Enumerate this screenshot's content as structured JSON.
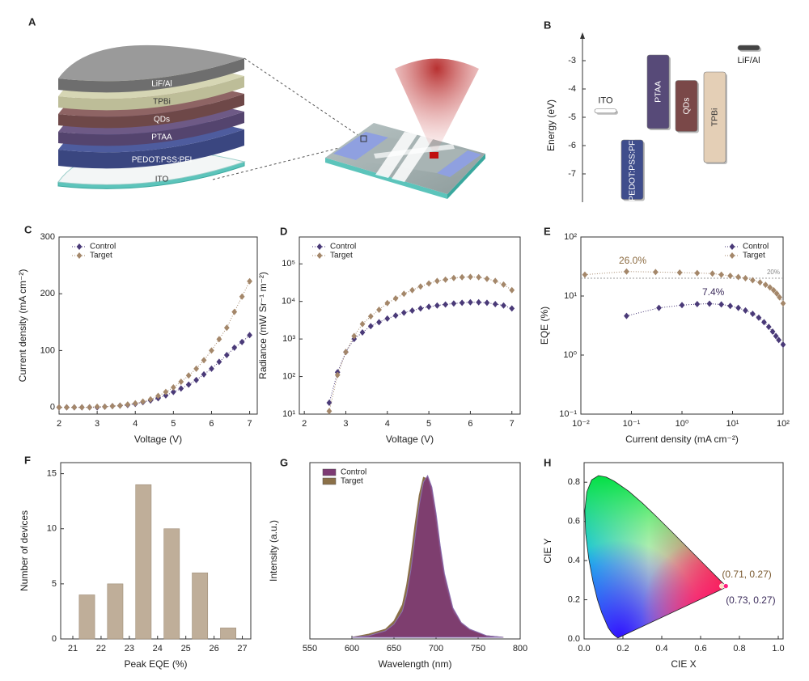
{
  "device_diagram": {
    "label": "A",
    "layers": [
      "LiF/Al",
      "TPBi",
      "QDs",
      "PTAA",
      "PEDOT:PSS:PFI",
      "ITO"
    ]
  },
  "chart_data": [
    {
      "type": "energy-levels",
      "label": "B",
      "ylabel": "Energy (eV)",
      "ylim": [
        -8,
        -2
      ],
      "yticks": [
        -3,
        -4,
        -5,
        -6,
        -7
      ],
      "levels": [
        {
          "name": "ITO",
          "top": -4.7,
          "bottom": -4.85,
          "color": "#ffffff"
        },
        {
          "name": "PEDOT:PSS:PFI",
          "top": -5.8,
          "bottom": -7.9,
          "color": "#3f4d8c"
        },
        {
          "name": "PTAA",
          "top": -2.8,
          "bottom": -5.4,
          "color": "#574a78"
        },
        {
          "name": "QDs",
          "top": -3.7,
          "bottom": -5.5,
          "color": "#7a4848"
        },
        {
          "name": "TPBi",
          "top": -3.4,
          "bottom": -6.6,
          "color": "#e4cfb6"
        },
        {
          "name": "LiF/Al",
          "top": -2.46,
          "bottom": -2.63,
          "color": "#444444"
        }
      ]
    },
    {
      "type": "line",
      "label": "C",
      "xlabel": "Voltage (V)",
      "ylabel": "Current density (mA cm⁻²)",
      "xlim": [
        2,
        7.2
      ],
      "ylim": [
        -12,
        300
      ],
      "xticks": [
        2,
        3,
        4,
        5,
        6,
        7
      ],
      "yticks": [
        0,
        100,
        200,
        300
      ],
      "legend": "upper left",
      "x": [
        2.0,
        2.2,
        2.4,
        2.6,
        2.8,
        3.0,
        3.2,
        3.4,
        3.6,
        3.8,
        4.0,
        4.2,
        4.4,
        4.6,
        4.8,
        5.0,
        5.2,
        5.4,
        5.6,
        5.8,
        6.0,
        6.2,
        6.4,
        6.6,
        6.8,
        7.0
      ],
      "series": [
        {
          "name": "Control",
          "color": "#4a3a78",
          "values": [
            0,
            0,
            0,
            0,
            0,
            0,
            1,
            2,
            3,
            4,
            6,
            9,
            12,
            16,
            21,
            27,
            33,
            40,
            48,
            58,
            68,
            80,
            92,
            105,
            115,
            127
          ]
        },
        {
          "name": "Target",
          "color": "#a4876a",
          "values": [
            0,
            0,
            0,
            0,
            0,
            1,
            1,
            2,
            3,
            5,
            7,
            10,
            14,
            20,
            27,
            35,
            45,
            56,
            68,
            83,
            100,
            120,
            140,
            168,
            195,
            222
          ]
        }
      ]
    },
    {
      "type": "line",
      "label": "D",
      "xlabel": "Voltage (V)",
      "ylabel": "Radiance (mW Sr⁻¹ m⁻²)",
      "ylog": true,
      "xlim": [
        1.88,
        7.2
      ],
      "ylim": [
        10,
        520000
      ],
      "xticks": [
        2,
        3,
        4,
        5,
        6,
        7
      ],
      "yticks": [
        {
          "value": 10,
          "label": "10¹"
        },
        {
          "value": 100,
          "label": "10²"
        },
        {
          "value": 1000,
          "label": "10³"
        },
        {
          "value": 10000,
          "label": "10⁴"
        },
        {
          "value": 100000,
          "label": "10⁵"
        }
      ],
      "legend": "upper left",
      "x": [
        2.6,
        2.8,
        3.0,
        3.2,
        3.4,
        3.6,
        3.8,
        4.0,
        4.2,
        4.4,
        4.6,
        4.8,
        5.0,
        5.2,
        5.4,
        5.6,
        5.8,
        6.0,
        6.2,
        6.4,
        6.6,
        6.8,
        7.0
      ],
      "series": [
        {
          "name": "Control",
          "color": "#4a3a78",
          "values": [
            20,
            130,
            450,
            1000,
            1500,
            2200,
            2800,
            3500,
            4200,
            5000,
            5700,
            6500,
            7200,
            7800,
            8300,
            8800,
            9200,
            9500,
            9500,
            9200,
            8500,
            7800,
            6500
          ]
        },
        {
          "name": "Target",
          "color": "#a4876a",
          "values": [
            12,
            110,
            450,
            1200,
            2500,
            4000,
            6000,
            9000,
            12000,
            16000,
            20000,
            25000,
            30000,
            35000,
            38000,
            42000,
            44000,
            45000,
            44000,
            40000,
            35000,
            28000,
            20000
          ]
        }
      ]
    },
    {
      "type": "line",
      "label": "E",
      "xlabel": "Current density (mA cm⁻²)",
      "ylabel": "EQE (%)",
      "xlog": true,
      "ylog": true,
      "xlim": [
        0.01,
        100
      ],
      "ylim": [
        0.1,
        100
      ],
      "xticks": [
        {
          "value": 0.01,
          "label": "10⁻²"
        },
        {
          "value": 0.1,
          "label": "10⁻¹"
        },
        {
          "value": 1,
          "label": "10⁰"
        },
        {
          "value": 10,
          "label": "10¹"
        },
        {
          "value": 100,
          "label": "10²"
        }
      ],
      "yticks": [
        {
          "value": 0.1,
          "label": "10⁻¹"
        },
        {
          "value": 1,
          "label": "10⁰"
        },
        {
          "value": 10,
          "label": "10¹"
        },
        {
          "value": 100,
          "label": "10²"
        }
      ],
      "legend": "upper right",
      "ref_line": {
        "value": 20,
        "label": "20%"
      },
      "annotations": [
        "26.0%",
        "7.4%"
      ],
      "series": [
        {
          "name": "Control",
          "color": "#4a3a78",
          "x": [
            0.08,
            0.35,
            1,
            2,
            3.5,
            6,
            9,
            13,
            18,
            25,
            33,
            42,
            52,
            62,
            72,
            82,
            100
          ],
          "values": [
            4.6,
            6.3,
            7,
            7.3,
            7.4,
            7.2,
            6.8,
            6.3,
            5.7,
            5,
            4.3,
            3.6,
            3,
            2.5,
            2.1,
            1.8,
            1.5
          ]
        },
        {
          "name": "Target",
          "color": "#a4876a",
          "x": [
            0.012,
            0.08,
            0.3,
            0.9,
            2,
            4,
            6,
            9,
            13,
            18,
            25,
            35,
            45,
            55,
            65,
            75,
            85,
            100
          ],
          "values": [
            23,
            26,
            25.5,
            25,
            24.5,
            24,
            23,
            22,
            21,
            20,
            18.5,
            17,
            15.5,
            14,
            12.5,
            11,
            9.5,
            7.5
          ]
        }
      ]
    },
    {
      "type": "histogram",
      "label": "F",
      "xlabel": "Peak EQE (%)",
      "ylabel": "Number of devices",
      "color": "#bfae99",
      "xlim": [
        20.57,
        27.3
      ],
      "ylim": [
        0,
        16
      ],
      "xticks": [
        21,
        22,
        23,
        24,
        25,
        26,
        27
      ],
      "yticks": [
        0,
        5,
        10,
        15
      ],
      "bins": [
        21,
        22,
        23,
        24,
        25,
        26,
        27
      ],
      "counts": [
        4,
        5,
        14,
        10,
        6,
        1
      ]
    },
    {
      "type": "area",
      "label": "G",
      "xlabel": "Wavelength (nm)",
      "ylabel": "Intensity (a.u.)",
      "legend": "upper left",
      "xlim": [
        550,
        800
      ],
      "ylim": [
        0,
        1.08
      ],
      "xticks": [
        550,
        600,
        650,
        700,
        750,
        800
      ],
      "x": [
        600,
        620,
        640,
        650,
        660,
        665,
        670,
        675,
        680,
        685,
        690,
        695,
        700,
        705,
        710,
        720,
        730,
        740,
        760,
        780
      ],
      "series": [
        {
          "name": "Control",
          "color": "#7d3a73",
          "values": [
            0.01,
            0.02,
            0.05,
            0.09,
            0.17,
            0.27,
            0.42,
            0.62,
            0.82,
            0.96,
            1.0,
            0.93,
            0.77,
            0.57,
            0.4,
            0.19,
            0.1,
            0.06,
            0.02,
            0.01
          ]
        },
        {
          "name": "Target",
          "color": "#8b7048",
          "values": [
            0.01,
            0.03,
            0.06,
            0.11,
            0.21,
            0.33,
            0.5,
            0.7,
            0.88,
            0.99,
            0.98,
            0.86,
            0.68,
            0.49,
            0.34,
            0.16,
            0.09,
            0.05,
            0.02,
            0.01
          ]
        }
      ]
    },
    {
      "type": "cie",
      "label": "H",
      "xlabel": "CIE X",
      "ylabel": "CIE Y",
      "xlim": [
        0,
        1.025
      ],
      "ylim": [
        0,
        0.9
      ],
      "xticks": [
        {
          "value": 0,
          "label": "0.0"
        },
        0.2,
        0.4,
        0.6,
        0.8,
        {
          "value": 1,
          "label": "1.0"
        }
      ],
      "yticks": [
        {
          "value": 0,
          "label": "0.0"
        },
        0.2,
        0.4,
        0.6,
        0.8
      ],
      "points": [
        {
          "x": 0.71,
          "y": 0.27,
          "label": "(0.71, 0.27)",
          "color": "#7a5a30"
        },
        {
          "x": 0.73,
          "y": 0.27,
          "label": "(0.73, 0.27)",
          "color": "#3a2a5a"
        }
      ]
    }
  ]
}
